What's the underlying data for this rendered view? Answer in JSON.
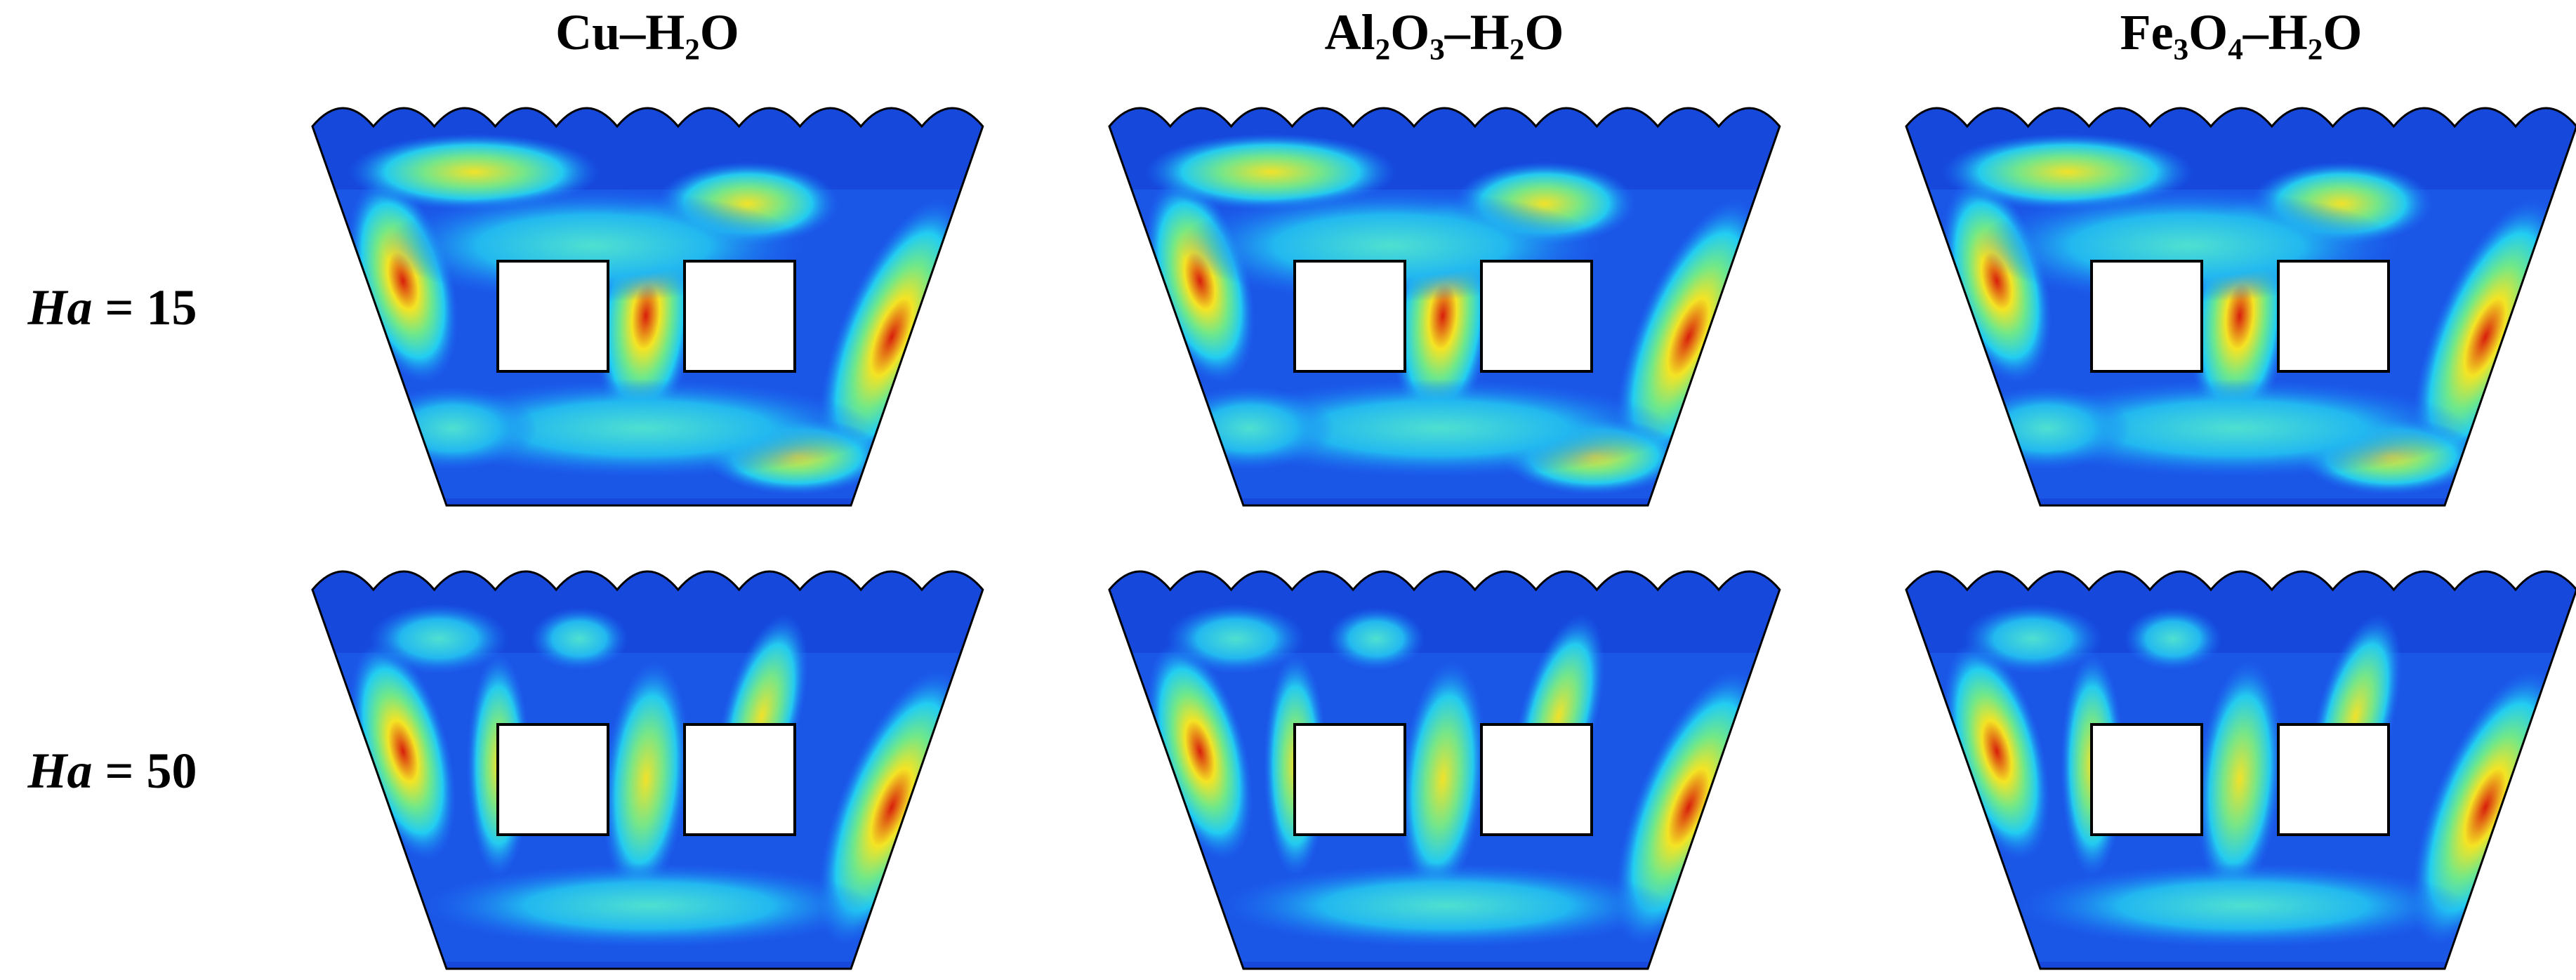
{
  "columns": [
    {
      "title": "Cu–H₂O"
    },
    {
      "title": "Al₂O₃–H₂O"
    },
    {
      "title": "Fe₃O₄–H₂O"
    }
  ],
  "rows": [
    {
      "symbol": "Ha",
      "value": "= 15"
    },
    {
      "symbol": "Ha",
      "value": "= 50"
    }
  ]
}
